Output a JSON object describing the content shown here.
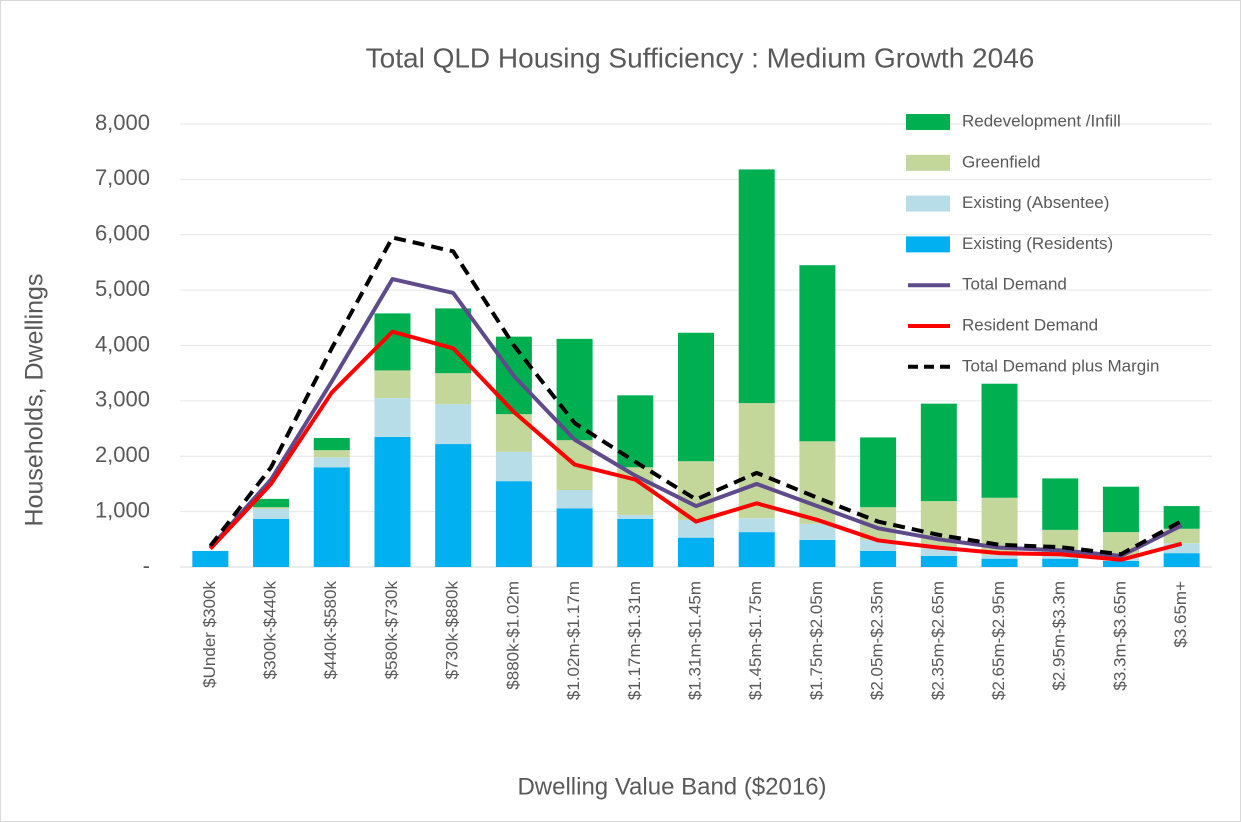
{
  "chart_data": {
    "type": "bar",
    "title": "Total QLD  Housing Sufficiency : Medium Growth 2046",
    "x_label": "Dwelling Value Band ($2016)",
    "y_label": "Households, Dwellings",
    "categories": [
      "$Under $300k",
      "$300k-$440k",
      "$440k-$580k",
      "$580k-$730k",
      "$730k-$880k",
      "$880k-$1.02m",
      "$1.02m-$1.17m",
      "$1.17m-$1.31m",
      "$1.31m-$1.45m",
      "$1.45m-$1.75m",
      "$1.75m-$2.05m",
      "$2.05m-$2.35m",
      "$2.35m-$2.65m",
      "$2.65m-$2.95m",
      "$2.95m-$3.3m",
      "$3.3m-$3.65m",
      "$3.65m+"
    ],
    "series": [
      {
        "name": "Redevelopment /Infill",
        "type": "bar",
        "color": "#00b050",
        "values": [
          0,
          150,
          220,
          1030,
          1170,
          1400,
          1830,
          1300,
          2320,
          4220,
          3180,
          1260,
          1760,
          2060,
          930,
          820,
          410
        ]
      },
      {
        "name": "Greenfield",
        "type": "bar",
        "color": "#c4d79b",
        "values": [
          0,
          30,
          130,
          500,
          560,
          680,
          900,
          860,
          1060,
          2080,
          1490,
          590,
          850,
          1030,
          450,
          450,
          260
        ]
      },
      {
        "name": "Existing (Absentee)",
        "type": "bar",
        "color": "#b7dee8",
        "values": [
          0,
          180,
          180,
          700,
          720,
          530,
          330,
          70,
          320,
          250,
          290,
          200,
          140,
          70,
          70,
          70,
          180
        ]
      },
      {
        "name": "Existing (Residents)",
        "type": "bar",
        "color": "#00b0f0",
        "values": [
          290,
          870,
          1800,
          2350,
          2220,
          1550,
          1060,
          870,
          530,
          630,
          490,
          290,
          200,
          150,
          150,
          110,
          250
        ]
      },
      {
        "name": "Total Demand",
        "type": "line",
        "color": "#5f4b8b",
        "values": [
          350,
          1580,
          3350,
          5200,
          4950,
          3450,
          2300,
          1650,
          1100,
          1500,
          1100,
          700,
          500,
          350,
          300,
          200,
          750
        ]
      },
      {
        "name": "Resident Demand",
        "type": "line",
        "color": "#ff0000",
        "values": [
          330,
          1500,
          3150,
          4250,
          3950,
          2800,
          1850,
          1580,
          820,
          1150,
          850,
          480,
          350,
          250,
          230,
          130,
          420
        ]
      },
      {
        "name": "Total Demand plus Margin",
        "type": "line",
        "color": "#000000",
        "dashed": true,
        "values": [
          380,
          1800,
          3950,
          5950,
          5700,
          4000,
          2600,
          1900,
          1220,
          1700,
          1250,
          820,
          580,
          400,
          360,
          230,
          830
        ]
      }
    ],
    "ylim": [
      0,
      8000
    ],
    "yticks": [
      {
        "value": 0,
        "label": "-"
      },
      {
        "value": 1000,
        "label": "1,000"
      },
      {
        "value": 2000,
        "label": "2,000"
      },
      {
        "value": 3000,
        "label": "3,000"
      },
      {
        "value": 4000,
        "label": "4,000"
      },
      {
        "value": 5000,
        "label": "5,000"
      },
      {
        "value": 6000,
        "label": "6,000"
      },
      {
        "value": 7000,
        "label": "7,000"
      },
      {
        "value": 8000,
        "label": "8,000"
      }
    ],
    "grid": true,
    "legend": "upper right"
  }
}
